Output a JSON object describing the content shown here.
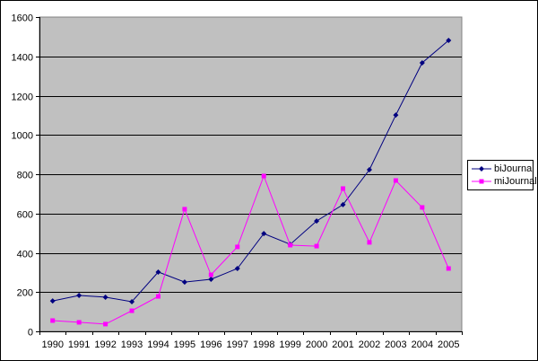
{
  "chart_data": {
    "type": "line",
    "title": "",
    "xlabel": "",
    "ylabel": "",
    "ylim": [
      0,
      1600
    ],
    "yticks": [
      0,
      200,
      400,
      600,
      800,
      1000,
      1200,
      1400,
      1600
    ],
    "grid": true,
    "legend_position": "right",
    "categories": [
      "1990",
      "1991",
      "1992",
      "1993",
      "1994",
      "1995",
      "1996",
      "1997",
      "1998",
      "1999",
      "2000",
      "2001",
      "2002",
      "2003",
      "2004",
      "2005"
    ],
    "series": [
      {
        "name": "biJournal",
        "color": "#000080",
        "marker": "diamond",
        "values": [
          155,
          183,
          174,
          151,
          302,
          251,
          265,
          320,
          498,
          443,
          562,
          645,
          823,
          1101,
          1367,
          1481
        ]
      },
      {
        "name": "miJournal",
        "color": "#FF00FF",
        "marker": "square",
        "values": [
          55,
          46,
          37,
          105,
          178,
          622,
          288,
          430,
          791,
          439,
          434,
          727,
          453,
          768,
          631,
          320
        ]
      }
    ]
  },
  "colors": {
    "plot_background": "#C0C0C0",
    "gridline": "#000000"
  }
}
